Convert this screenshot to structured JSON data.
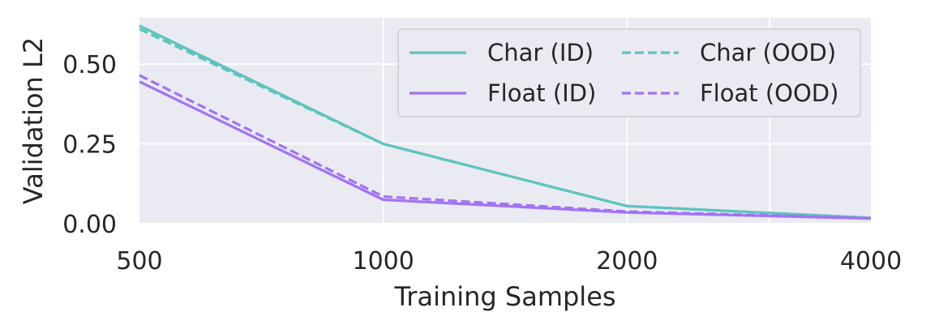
{
  "chart_data": {
    "type": "line",
    "xlabel": "Training Samples",
    "ylabel": "Validation L2",
    "x_scale": "log2",
    "x": [
      500,
      1000,
      2000,
      4000
    ],
    "xticks": [
      "500",
      "1000",
      "2000",
      "4000"
    ],
    "yticks": [
      "0.00",
      "0.25",
      "0.50"
    ],
    "xlim": [
      500,
      4000
    ],
    "ylim": [
      0,
      0.645
    ],
    "grid": true,
    "legend_position": "top-right",
    "series": [
      {
        "name": "Char (ID)",
        "color": "#5cc4bd",
        "style": "solid",
        "values": [
          0.62,
          0.25,
          0.055,
          0.018
        ]
      },
      {
        "name": "Char (OOD)",
        "color": "#5cc4bd",
        "style": "dashed",
        "values": [
          0.61,
          0.25,
          0.055,
          0.018
        ]
      },
      {
        "name": "Float (ID)",
        "color": "#a173f5",
        "style": "solid",
        "values": [
          0.445,
          0.075,
          0.035,
          0.016
        ]
      },
      {
        "name": "Float (OOD)",
        "color": "#a173f5",
        "style": "dashed",
        "values": [
          0.465,
          0.085,
          0.038,
          0.017
        ]
      }
    ]
  }
}
